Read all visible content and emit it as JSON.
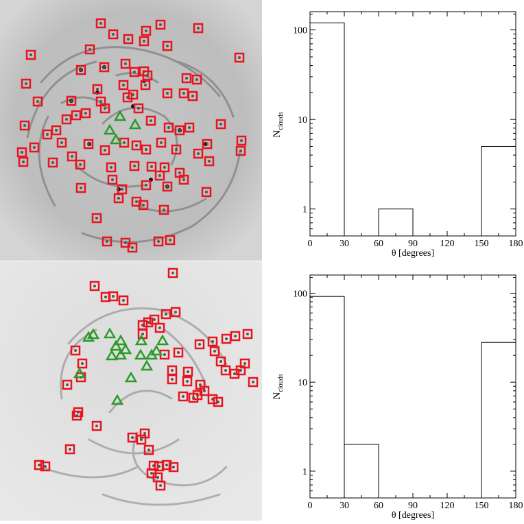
{
  "maps": [
    {
      "marker_colors": {
        "square": "#e8141e",
        "triangle": "#2a9a2a"
      },
      "squares": [
        [
          147,
          34
        ],
        [
          165,
          50
        ],
        [
          213,
          45
        ],
        [
          234,
          36
        ],
        [
          289,
          41
        ],
        [
          45,
          80
        ],
        [
          131,
          72
        ],
        [
          187,
          57
        ],
        [
          210,
          60
        ],
        [
          244,
          67
        ],
        [
          349,
          84
        ],
        [
          38,
          122
        ],
        [
          118,
          102
        ],
        [
          152,
          98
        ],
        [
          183,
          93
        ],
        [
          196,
          105
        ],
        [
          210,
          104
        ],
        [
          215,
          110
        ],
        [
          272,
          114
        ],
        [
          287,
          116
        ],
        [
          55,
          148
        ],
        [
          104,
          147
        ],
        [
          142,
          130
        ],
        [
          180,
          124
        ],
        [
          194,
          138
        ],
        [
          212,
          124
        ],
        [
          244,
          136
        ],
        [
          268,
          136
        ],
        [
          281,
          140
        ],
        [
          36,
          183
        ],
        [
          69,
          196
        ],
        [
          82,
          190
        ],
        [
          97,
          174
        ],
        [
          111,
          168
        ],
        [
          125,
          165
        ],
        [
          147,
          148
        ],
        [
          153,
          158
        ],
        [
          186,
          142
        ],
        [
          202,
          158
        ],
        [
          220,
          176
        ],
        [
          246,
          186
        ],
        [
          262,
          190
        ],
        [
          276,
          186
        ],
        [
          322,
          181
        ],
        [
          32,
          222
        ],
        [
          50,
          215
        ],
        [
          90,
          208
        ],
        [
          105,
          228
        ],
        [
          129,
          210
        ],
        [
          153,
          219
        ],
        [
          181,
          208
        ],
        [
          199,
          212
        ],
        [
          213,
          218
        ],
        [
          235,
          208
        ],
        [
          257,
          218
        ],
        [
          289,
          224
        ],
        [
          302,
          210
        ],
        [
          352,
          205
        ],
        [
          34,
          236
        ],
        [
          77,
          237
        ],
        [
          117,
          240
        ],
        [
          162,
          244
        ],
        [
          196,
          242
        ],
        [
          221,
          243
        ],
        [
          240,
          244
        ],
        [
          262,
          252
        ],
        [
          305,
          235
        ],
        [
          351,
          220
        ],
        [
          118,
          274
        ],
        [
          164,
          262
        ],
        [
          178,
          276
        ],
        [
          213,
          270
        ],
        [
          233,
          256
        ],
        [
          244,
          272
        ],
        [
          268,
          262
        ],
        [
          301,
          280
        ],
        [
          141,
          318
        ],
        [
          173,
          289
        ],
        [
          199,
          294
        ],
        [
          209,
          299
        ],
        [
          239,
          306
        ],
        [
          156,
          352
        ],
        [
          183,
          354
        ],
        [
          193,
          361
        ],
        [
          231,
          352
        ],
        [
          248,
          350
        ]
      ],
      "triangles": [
        [
          175,
          170
        ],
        [
          197,
          182
        ],
        [
          160,
          190
        ],
        [
          169,
          204
        ]
      ],
      "dots": [
        [
          118,
          102
        ],
        [
          152,
          98
        ],
        [
          142,
          135
        ],
        [
          104,
          147
        ],
        [
          194,
          155
        ],
        [
          210,
          118
        ],
        [
          262,
          190
        ],
        [
          300,
          210
        ],
        [
          130,
          210
        ],
        [
          220,
          262
        ],
        [
          173,
          276
        ],
        [
          244,
          272
        ]
      ]
    },
    {
      "marker_colors": {
        "square": "#e8141e",
        "triangle": "#2a9a2a"
      },
      "squares": [
        [
          252,
          398
        ],
        [
          138,
          417
        ],
        [
          154,
          433
        ],
        [
          165,
          432
        ],
        [
          180,
          438
        ],
        [
          242,
          458
        ],
        [
          256,
          455
        ],
        [
          208,
          474
        ],
        [
          216,
          470
        ],
        [
          225,
          466
        ],
        [
          233,
          478
        ],
        [
          291,
          502
        ],
        [
          310,
          498
        ],
        [
          330,
          494
        ],
        [
          343,
          490
        ],
        [
          361,
          487
        ],
        [
          110,
          511
        ],
        [
          120,
          530
        ],
        [
          240,
          517
        ],
        [
          260,
          514
        ],
        [
          208,
          487
        ],
        [
          313,
          512
        ],
        [
          322,
          527
        ],
        [
          329,
          540
        ],
        [
          342,
          545
        ],
        [
          351,
          540
        ],
        [
          357,
          530
        ],
        [
          369,
          557
        ],
        [
          98,
          561
        ],
        [
          118,
          550
        ],
        [
          251,
          540
        ],
        [
          251,
          553
        ],
        [
          274,
          542
        ],
        [
          273,
          556
        ],
        [
          292,
          561
        ],
        [
          298,
          570
        ],
        [
          288,
          576
        ],
        [
          282,
          580
        ],
        [
          267,
          578
        ],
        [
          310,
          582
        ],
        [
          318,
          586
        ],
        [
          114,
          601
        ],
        [
          112,
          606
        ],
        [
          141,
          621
        ],
        [
          211,
          632
        ],
        [
          193,
          638
        ],
        [
          206,
          641
        ],
        [
          217,
          656
        ],
        [
          102,
          655
        ],
        [
          57,
          678
        ],
        [
          66,
          680
        ],
        [
          224,
          679
        ],
        [
          232,
          680
        ],
        [
          243,
          678
        ],
        [
          253,
          681
        ],
        [
          221,
          690
        ],
        [
          230,
          696
        ],
        [
          234,
          708
        ]
      ],
      "triangles": [
        [
          129,
          492
        ],
        [
          136,
          488
        ],
        [
          160,
          487
        ],
        [
          176,
          497
        ],
        [
          206,
          497
        ],
        [
          237,
          497
        ],
        [
          169,
          505
        ],
        [
          183,
          510
        ],
        [
          228,
          512
        ],
        [
          163,
          519
        ],
        [
          176,
          518
        ],
        [
          205,
          518
        ],
        [
          221,
          518
        ],
        [
          214,
          534
        ],
        [
          191,
          551
        ],
        [
          116,
          545
        ],
        [
          171,
          584
        ]
      ],
      "dots": []
    }
  ],
  "chart_data": [
    {
      "type": "bar",
      "xlabel": "θ  [degrees]",
      "ylabel": "N",
      "ylabel_sub": "clouds",
      "xlim": [
        0,
        180
      ],
      "ylim": [
        0.5,
        160
      ],
      "yscale": "log",
      "xticks": [
        "0",
        "30",
        "60",
        "90",
        "120",
        "150",
        "180"
      ],
      "yticks": [
        "1",
        "10",
        "100"
      ],
      "bins": [
        [
          0,
          30
        ],
        [
          30,
          60
        ],
        [
          60,
          90
        ],
        [
          90,
          120
        ],
        [
          120,
          150
        ],
        [
          150,
          180
        ]
      ],
      "values": [
        120,
        0,
        1,
        0,
        0,
        5
      ]
    },
    {
      "type": "bar",
      "xlabel": "θ  [degrees]",
      "ylabel": "N",
      "ylabel_sub": "clouds",
      "xlim": [
        0,
        180
      ],
      "ylim": [
        0.5,
        160
      ],
      "yscale": "log",
      "xticks": [
        "0",
        "30",
        "60",
        "90",
        "120",
        "150",
        "180"
      ],
      "yticks": [
        "1",
        "10",
        "100"
      ],
      "bins": [
        [
          0,
          30
        ],
        [
          30,
          60
        ],
        [
          60,
          90
        ],
        [
          90,
          120
        ],
        [
          120,
          150
        ],
        [
          150,
          180
        ]
      ],
      "values": [
        92,
        2,
        0,
        0,
        0,
        28
      ]
    }
  ]
}
